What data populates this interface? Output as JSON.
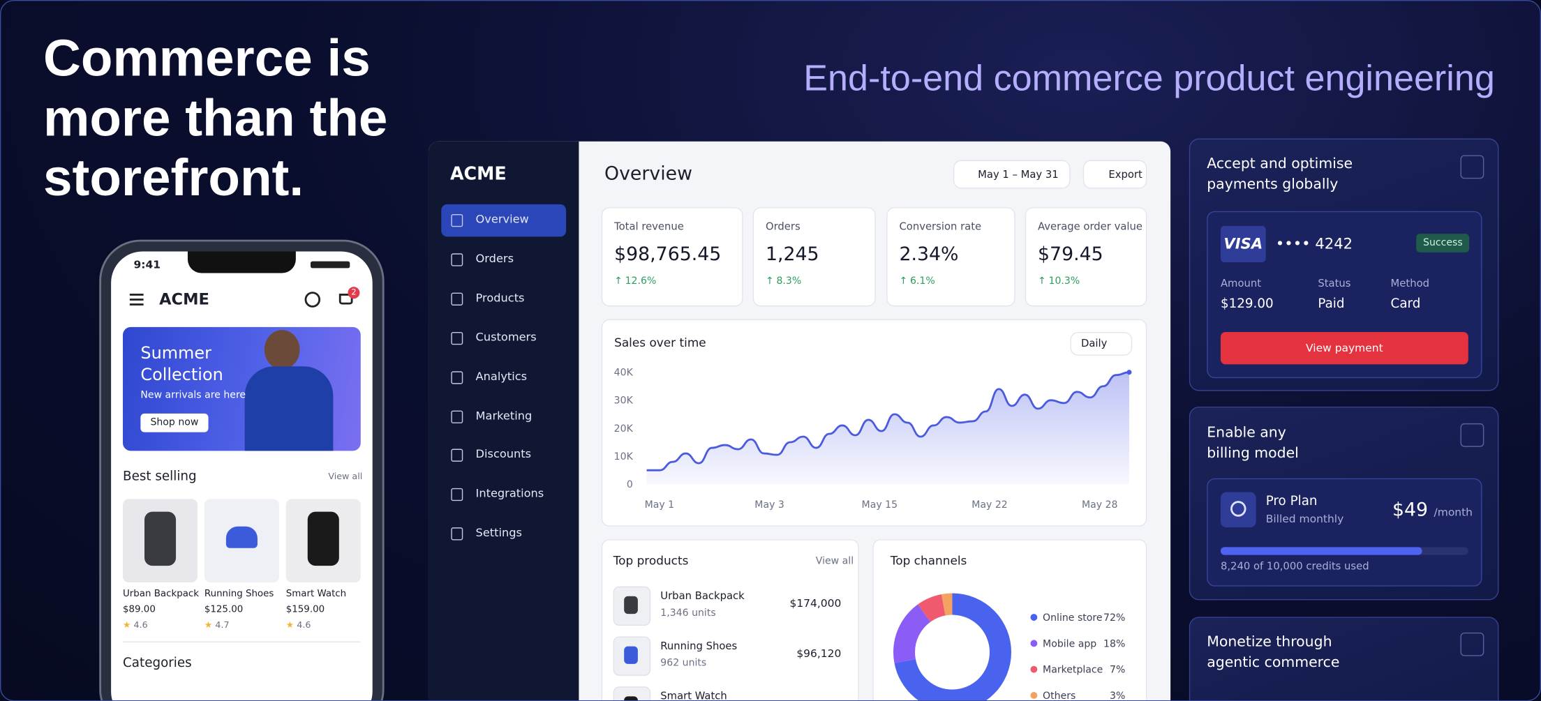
{
  "hero": {
    "title": "Commerce is more than the storefront.",
    "tagline": "End-to-end commerce product engineering"
  },
  "phone": {
    "time": "9:41",
    "brand": "ACME",
    "cart_count": "2",
    "banner": {
      "title": "Summer Collection",
      "subtitle": "New arrivals are here",
      "button": "Shop now"
    },
    "best_selling": "Best selling",
    "view_all": "View all",
    "products": [
      {
        "name": "Urban Backpack",
        "price": "$89.00",
        "rating": "4.6"
      },
      {
        "name": "Running Shoes",
        "price": "$125.00",
        "rating": "4.7"
      },
      {
        "name": "Smart Watch",
        "price": "$159.00",
        "rating": "4.6"
      }
    ],
    "categories": "Categories"
  },
  "dashboard": {
    "brand": "ACME",
    "nav": [
      "Overview",
      "Orders",
      "Products",
      "Customers",
      "Analytics",
      "Marketing",
      "Discounts",
      "Integrations",
      "Settings"
    ],
    "title": "Overview",
    "date_range": "May 1 – May 31",
    "export": "Export",
    "kpis": [
      {
        "label": "Total revenue",
        "value": "$98,765.45",
        "change": "12.6%"
      },
      {
        "label": "Orders",
        "value": "1,245",
        "change": "8.3%"
      },
      {
        "label": "Conversion rate",
        "value": "2.34%",
        "change": "6.1%"
      },
      {
        "label": "Average order value",
        "value": "$79.45",
        "change": "10.3%"
      }
    ],
    "sales_chart": {
      "type": "line",
      "title": "Sales over time",
      "period": "Daily",
      "color": "#4a5be0",
      "x_labels": [
        "May 1",
        "May 3",
        "May 15",
        "May 22",
        "May 28"
      ],
      "values": [
        5000,
        5000,
        8000,
        11000,
        7500,
        13000,
        14000,
        12500,
        16000,
        11000,
        10500,
        15000,
        17000,
        13000,
        18000,
        21000,
        17500,
        23000,
        19000,
        25000,
        22000,
        17000,
        21000,
        24000,
        22000,
        22500,
        26000,
        34000,
        28000,
        32000,
        27000,
        30000,
        29000,
        33000,
        31000,
        35000,
        39000,
        40000
      ],
      "ylim": [
        0,
        40000
      ],
      "yticks": [
        {
          "value": 0,
          "label": "0"
        },
        {
          "value": 10000,
          "label": "10K"
        },
        {
          "value": 20000,
          "label": "20K"
        },
        {
          "value": 30000,
          "label": "30K"
        },
        {
          "value": 40000,
          "label": "40K"
        }
      ]
    },
    "top_products": {
      "title": "Top products",
      "view_all": "View all",
      "rows": [
        {
          "name": "Urban Backpack",
          "units": "1,346 units",
          "amount": "$174,000"
        },
        {
          "name": "Running Shoes",
          "units": "962 units",
          "amount": "$96,120"
        },
        {
          "name": "Smart Watch",
          "units": "",
          "amount": ""
        }
      ]
    },
    "top_channels": {
      "type": "pie",
      "title": "Top channels",
      "categories": [
        "Online store",
        "Mobile app",
        "Marketplace",
        "Others"
      ],
      "values": [
        72,
        18,
        7,
        3
      ],
      "value_labels": [
        "72%",
        "18%",
        "7%",
        "3%"
      ],
      "colors": [
        "#4a63ee",
        "#8b5cf6",
        "#f05a6e",
        "#f4a261"
      ]
    }
  },
  "cards": [
    {
      "title": "Accept and optimise payments globally",
      "brand": "VISA",
      "card_number": "•••• 4242",
      "status_pill": "Success",
      "fields": [
        {
          "label": "Amount",
          "value": "$129.00"
        },
        {
          "label": "Status",
          "value": "Paid"
        },
        {
          "label": "Method",
          "value": "Card"
        }
      ],
      "button": "View payment"
    },
    {
      "title": "Enable any billing model",
      "plan": "Pro Plan",
      "billing": "Billed monthly",
      "price": "$49",
      "period": "/month",
      "usage": "8,240 of 10,000 credits used"
    },
    {
      "title": "Monetize through agentic commerce"
    }
  ]
}
